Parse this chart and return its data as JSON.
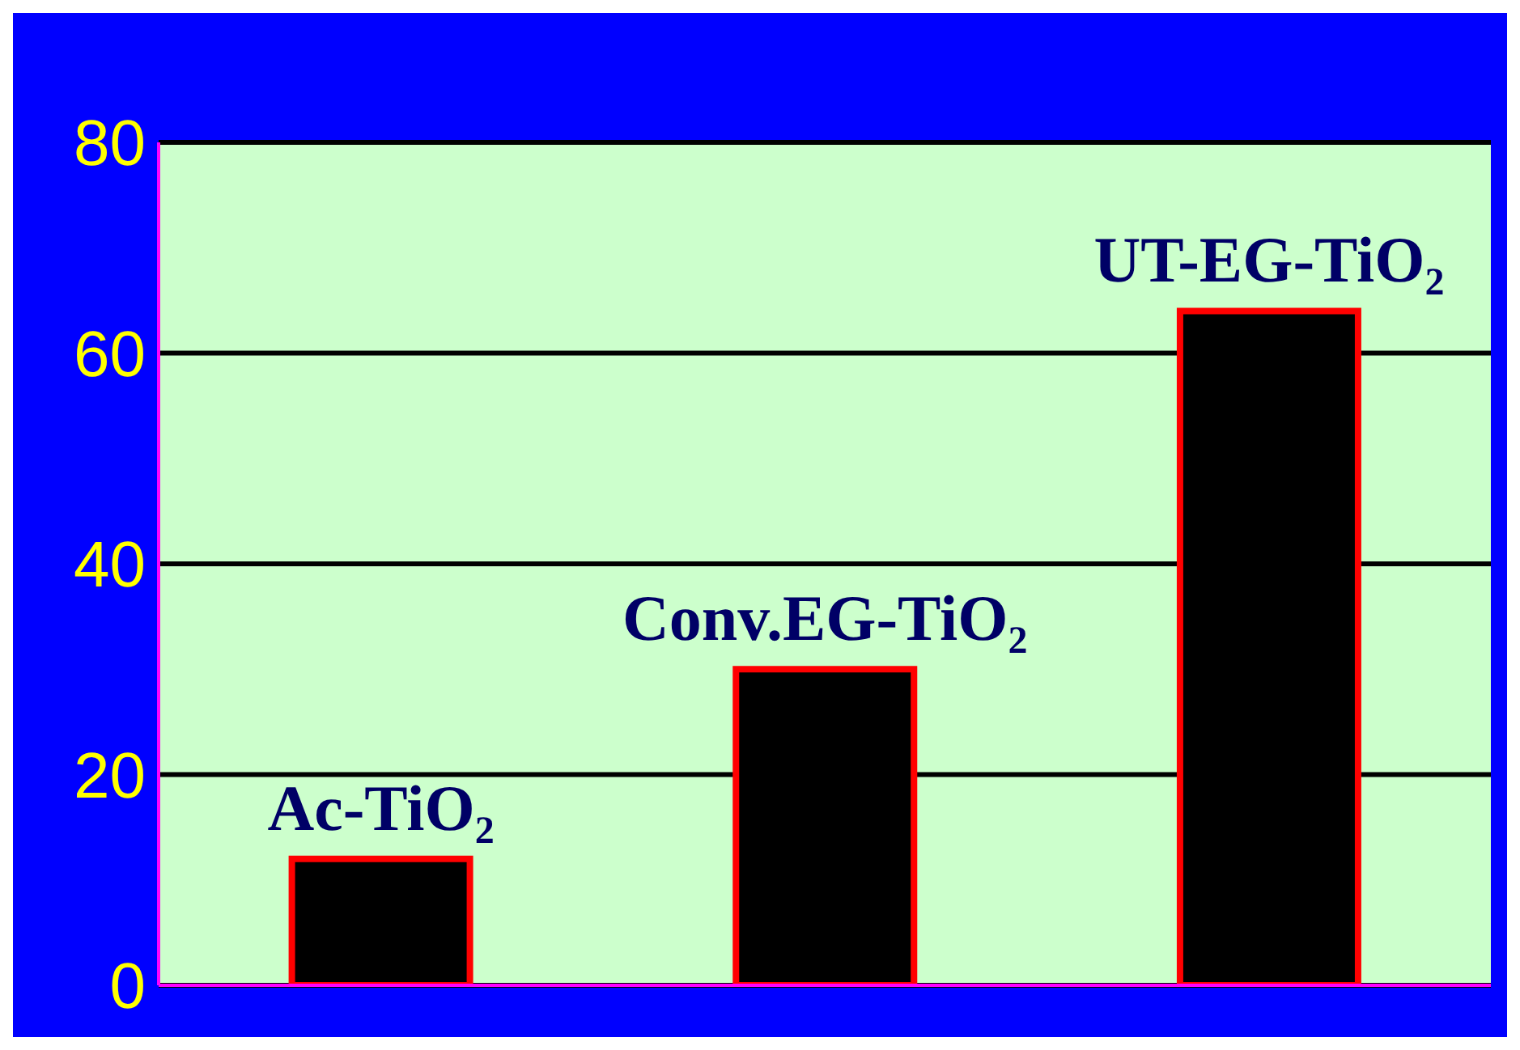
{
  "chart_data": {
    "type": "bar",
    "categories": [
      "Ac-TiO₂",
      "Conv.EG-TiO₂",
      "UT-EG-TiO₂"
    ],
    "values": [
      12,
      30,
      64
    ],
    "color": "#000000",
    "ylim": [
      0,
      80
    ],
    "yticks": [
      0,
      20,
      40,
      60,
      80
    ],
    "grid": "y",
    "tick_labels": "y"
  }
}
